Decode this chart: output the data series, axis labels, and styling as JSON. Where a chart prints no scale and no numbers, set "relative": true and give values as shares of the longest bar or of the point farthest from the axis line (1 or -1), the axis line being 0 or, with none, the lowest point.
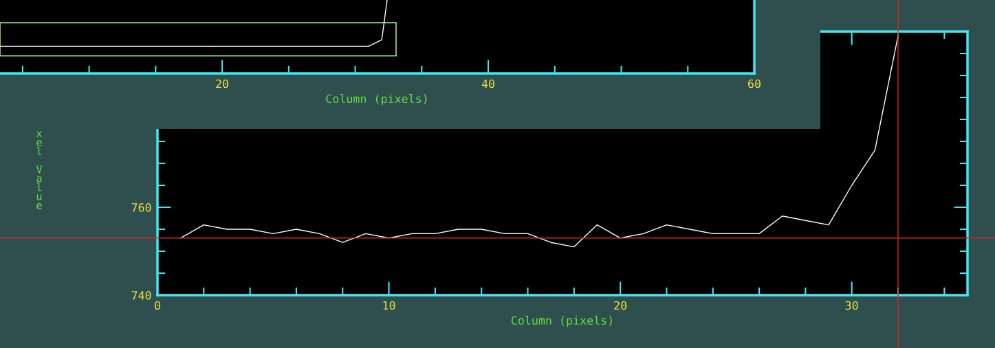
{
  "chart_data": [
    {
      "type": "line",
      "xlabel": "Column (pixels)",
      "xlim": [
        3.3,
        60
      ],
      "xticks": [
        {
          "value": 5,
          "label": null
        },
        {
          "value": 10,
          "label": null
        },
        {
          "value": 15,
          "label": null
        },
        20,
        {
          "value": 25,
          "label": null
        },
        {
          "value": 30,
          "label": null
        },
        {
          "value": 35,
          "label": null
        },
        40,
        {
          "value": 45,
          "label": null
        },
        {
          "value": 50,
          "label": null
        },
        {
          "value": 55,
          "label": null
        },
        60
      ],
      "relative": true,
      "tick_labels": "x",
      "grid": false,
      "legend": false,
      "series": [
        {
          "color": "#ffffff",
          "x": [
            3.3,
            31,
            32,
            32.4
          ],
          "values": [
            0.37,
            0.37,
            0.46,
            1
          ]
        }
      ]
    },
    {
      "type": "line",
      "xlabel": "Column (pixels)",
      "ylabel": "xel Value",
      "xlim": [
        0,
        35
      ],
      "ylim": [
        740,
        800
      ],
      "xticks": [
        0,
        {
          "value": 2,
          "label": null
        },
        {
          "value": 4,
          "label": null
        },
        {
          "value": 6,
          "label": null
        },
        {
          "value": 8,
          "label": null
        },
        10,
        {
          "value": 12,
          "label": null
        },
        {
          "value": 14,
          "label": null
        },
        {
          "value": 16,
          "label": null
        },
        {
          "value": 18,
          "label": null
        },
        20,
        {
          "value": 22,
          "label": null
        },
        {
          "value": 24,
          "label": null
        },
        {
          "value": 26,
          "label": null
        },
        {
          "value": 28,
          "label": null
        },
        30,
        {
          "value": 32,
          "label": null
        },
        {
          "value": 34,
          "label": null
        }
      ],
      "yticks": [
        740,
        {
          "value": 745,
          "label": null
        },
        {
          "value": 750,
          "label": null
        },
        {
          "value": 755,
          "label": null
        },
        760,
        {
          "value": 765,
          "label": null
        },
        {
          "value": 770,
          "label": null
        },
        {
          "value": 775,
          "label": null
        },
        {
          "value": 780,
          "label": null
        },
        {
          "value": 785,
          "label": null
        },
        {
          "value": 790,
          "label": null
        },
        {
          "value": 795,
          "label": null
        },
        {
          "value": 800,
          "label": null
        }
      ],
      "grid": false,
      "legend": false,
      "ref_lines": [
        {
          "axis": "y",
          "value": 753,
          "color": "#e02020"
        },
        {
          "axis": "x",
          "value": 32,
          "color": "#e02020"
        }
      ],
      "series": [
        {
          "color": "#ffffff",
          "x": [
            1,
            2,
            3,
            4,
            5,
            6,
            7,
            8,
            9,
            10,
            11,
            12,
            13,
            14,
            15,
            16,
            17,
            18,
            19,
            20,
            21,
            22,
            23,
            24,
            25,
            26,
            27,
            28,
            29,
            30,
            31,
            32
          ],
          "values": [
            753,
            756,
            755,
            755,
            754,
            755,
            754,
            752,
            754,
            753,
            754,
            754,
            755,
            755,
            754,
            754,
            752,
            751,
            756,
            753,
            754,
            756,
            755,
            754,
            754,
            754,
            758,
            757,
            756,
            765,
            773,
            799
          ]
        }
      ]
    }
  ]
}
